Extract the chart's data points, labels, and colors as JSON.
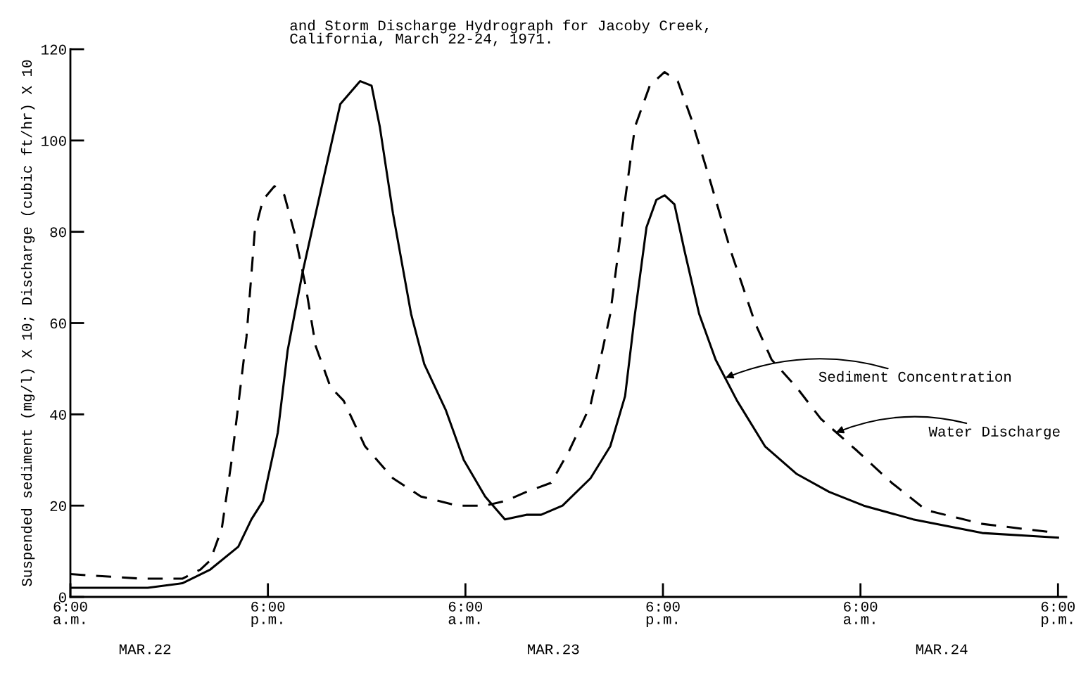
{
  "chart_data": {
    "type": "line",
    "title": "and Storm Discharge Hydrograph for Jacoby Creek,\nCalifornia, March 22-24, 1971.",
    "ylabel": "Suspended sediment (mg/l) X 10; Discharge (cubic ft/hr) X 10",
    "xlim": [
      "1971-03-22T06:00",
      "1971-03-24T18:30"
    ],
    "xticks": [
      {
        "value": "1971-03-22T06:00",
        "label": "6:00\na.m."
      },
      {
        "value": "1971-03-22T18:00",
        "label": "6:00\np.m."
      },
      {
        "value": "1971-03-23T06:00",
        "label": "6:00\na.m."
      },
      {
        "value": "1971-03-23T18:00",
        "label": "6:00\np.m."
      },
      {
        "value": "1971-03-24T06:00",
        "label": "6:00\na.m."
      },
      {
        "value": "1971-03-24T18:00",
        "label": "6:00\np.m."
      }
    ],
    "ylim": [
      0,
      120
    ],
    "yticks": [
      0,
      20,
      40,
      60,
      80,
      100,
      120
    ],
    "grid": false,
    "legend": false,
    "marker": "none",
    "x": [
      "1971-03-22T06:00",
      "1971-03-22T10:42",
      "1971-03-22T12:48",
      "1971-03-22T14:30",
      "1971-03-22T16:12",
      "1971-03-22T17:00",
      "1971-03-22T17:42",
      "1971-03-22T18:36",
      "1971-03-22T19:12",
      "1971-03-22T20:06",
      "1971-03-22T21:24",
      "1971-03-22T22:24",
      "1971-03-22T23:36",
      "1971-03-23T00:18",
      "1971-03-23T00:48",
      "1971-03-23T01:36",
      "1971-03-23T02:42",
      "1971-03-23T03:30",
      "1971-03-23T04:48",
      "1971-03-23T05:54",
      "1971-03-23T07:12",
      "1971-03-23T08:24",
      "1971-03-23T09:42",
      "1971-03-23T10:36",
      "1971-03-23T11:54",
      "1971-03-23T13:36",
      "1971-03-23T14:48",
      "1971-03-23T15:42",
      "1971-03-23T16:18",
      "1971-03-23T17:00",
      "1971-03-23T17:36",
      "1971-03-23T18:06",
      "1971-03-23T18:42",
      "1971-03-23T19:18",
      "1971-03-23T20:12",
      "1971-03-23T21:12",
      "1971-03-23T22:30",
      "1971-03-24T00:12",
      "1971-03-24T02:06",
      "1971-03-24T04:06",
      "1971-03-24T06:12",
      "1971-03-24T09:12",
      "1971-03-24T13:24",
      "1971-03-24T18:00"
    ],
    "series": [
      {
        "color": "#000000",
        "line_style": "solid",
        "values": [
          2,
          2,
          3,
          6,
          11,
          17,
          21,
          36,
          54,
          71,
          92,
          108,
          113,
          112,
          103,
          84,
          62,
          51,
          41,
          30,
          22,
          17,
          18,
          18,
          20,
          26,
          33,
          44,
          62,
          81,
          87,
          88,
          86,
          76,
          62,
          52,
          43,
          33,
          27,
          23,
          20,
          17,
          14,
          13
        ]
      },
      {
        "color": "#000000",
        "line_style": "dashed",
        "x": [
          "1971-03-22T06:00",
          "1971-03-22T10:18",
          "1971-03-22T12:48",
          "1971-03-22T13:54",
          "1971-03-22T14:30",
          "1971-03-22T15:12",
          "1971-03-22T15:48",
          "1971-03-22T16:42",
          "1971-03-22T17:12",
          "1971-03-22T17:42",
          "1971-03-22T18:24",
          "1971-03-22T19:00",
          "1971-03-22T19:36",
          "1971-03-22T20:18",
          "1971-03-22T20:54",
          "1971-03-22T21:48",
          "1971-03-22T22:36",
          "1971-03-22T23:54",
          "1971-03-23T01:36",
          "1971-03-23T03:18",
          "1971-03-23T05:30",
          "1971-03-23T07:12",
          "1971-03-23T08:24",
          "1971-03-23T09:42",
          "1971-03-23T11:12",
          "1971-03-23T12:18",
          "1971-03-23T13:36",
          "1971-03-23T14:48",
          "1971-03-23T15:42",
          "1971-03-23T16:18",
          "1971-03-23T17:12",
          "1971-03-23T18:06",
          "1971-03-23T18:54",
          "1971-03-23T19:42",
          "1971-03-23T20:48",
          "1971-03-23T22:06",
          "1971-03-23T23:36",
          "1971-03-24T00:36",
          "1971-03-24T02:06",
          "1971-03-24T03:36",
          "1971-03-24T05:48",
          "1971-03-24T07:54",
          "1971-03-24T10:00",
          "1971-03-24T13:24",
          "1971-03-24T18:00"
        ],
        "values": [
          5,
          4,
          4,
          6,
          8,
          15,
          30,
          57,
          80,
          87,
          90,
          88,
          80,
          68,
          55,
          46,
          43,
          33,
          26,
          22,
          20,
          20,
          21,
          23,
          25,
          32,
          42,
          62,
          87,
          103,
          112,
          115,
          113,
          105,
          92,
          76,
          60,
          52,
          46,
          39,
          32,
          25,
          19,
          16,
          14
        ]
      }
    ],
    "annotations": [
      {
        "text": "Sediment Concentration",
        "x": "1971-03-23T21:48",
        "y": 48
      },
      {
        "text": "Water Discharge",
        "x": "1971-03-24T04:30",
        "y": 36
      },
      "MAR.22",
      "MAR.23",
      "MAR.24"
    ]
  }
}
